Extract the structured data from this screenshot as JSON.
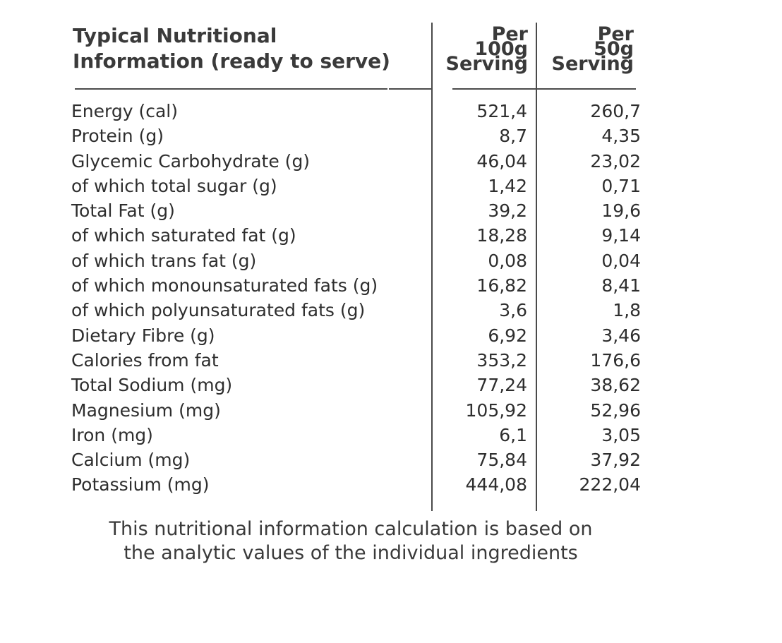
{
  "header": {
    "title_line1": "Typical Nutritional",
    "title_line2": "Information (ready to serve)",
    "col1": [
      "Per",
      "100g",
      "Serving"
    ],
    "col2": [
      "Per",
      "50g",
      "Serving"
    ]
  },
  "rows": [
    {
      "label": "Energy (cal)",
      "per100": "521,4",
      "per50": "260,7"
    },
    {
      "label": "Protein (g)",
      "per100": "8,7",
      "per50": "4,35"
    },
    {
      "label": "Glycemic Carbohydrate (g)",
      "per100": "46,04",
      "per50": "23,02"
    },
    {
      "label": "of which total sugar (g)",
      "per100": "1,42",
      "per50": "0,71"
    },
    {
      "label": "Total Fat (g)",
      "per100": "39,2",
      "per50": "19,6"
    },
    {
      "label": "of which saturated fat (g)",
      "per100": "18,28",
      "per50": "9,14"
    },
    {
      "label": "of which trans fat (g)",
      "per100": "0,08",
      "per50": "0,04"
    },
    {
      "label": "of which monounsaturated fats (g)",
      "per100": "16,82",
      "per50": "8,41"
    },
    {
      "label": "of which polyunsaturated fats (g)",
      "per100": "3,6",
      "per50": "1,8"
    },
    {
      "label": "Dietary Fibre (g)",
      "per100": "6,92",
      "per50": "3,46"
    },
    {
      "label": "Calories from fat",
      "per100": "353,2",
      "per50": "176,6"
    },
    {
      "label": "Total Sodium (mg)",
      "per100": "77,24",
      "per50": "38,62"
    },
    {
      "label": "Magnesium (mg)",
      "per100": "105,92",
      "per50": "52,96"
    },
    {
      "label": "Iron (mg)",
      "per100": "6,1",
      "per50": "3,05"
    },
    {
      "label": "Calcium (mg)",
      "per100": "75,84",
      "per50": "37,92"
    },
    {
      "label": "Potassium (mg)",
      "per100": "444,08",
      "per50": "222,04"
    }
  ],
  "footnote": {
    "line1": "This nutritional information calculation is based on",
    "line2": "the analytic values of the individual ingredients"
  },
  "colors": {
    "text": "#333333",
    "rule": "#4a4a4a",
    "background": "#ffffff"
  }
}
